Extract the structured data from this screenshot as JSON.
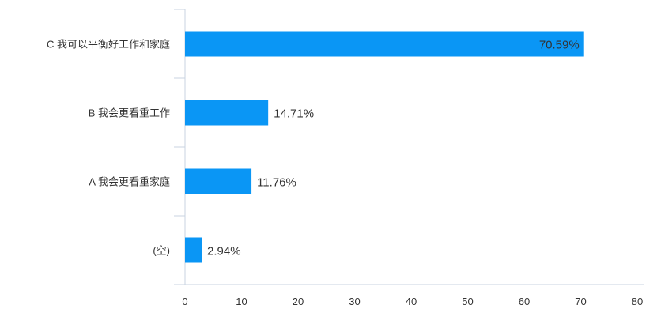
{
  "chart_data": {
    "type": "bar",
    "orientation": "horizontal",
    "categories": [
      "C 我可以平衡好工作和家庭",
      "B 我会更看重工作",
      "A 我会更看重家庭",
      "(空)"
    ],
    "values": [
      70.59,
      14.71,
      11.76,
      2.94
    ],
    "value_labels": [
      "70.59%",
      "14.71%",
      "11.76%",
      "2.94%"
    ],
    "xlim": [
      0,
      80
    ],
    "xticks": [
      0,
      10,
      20,
      30,
      40,
      50,
      60,
      70,
      80
    ],
    "bar_color": "#0a96f5",
    "grid": false,
    "legend": "none"
  }
}
